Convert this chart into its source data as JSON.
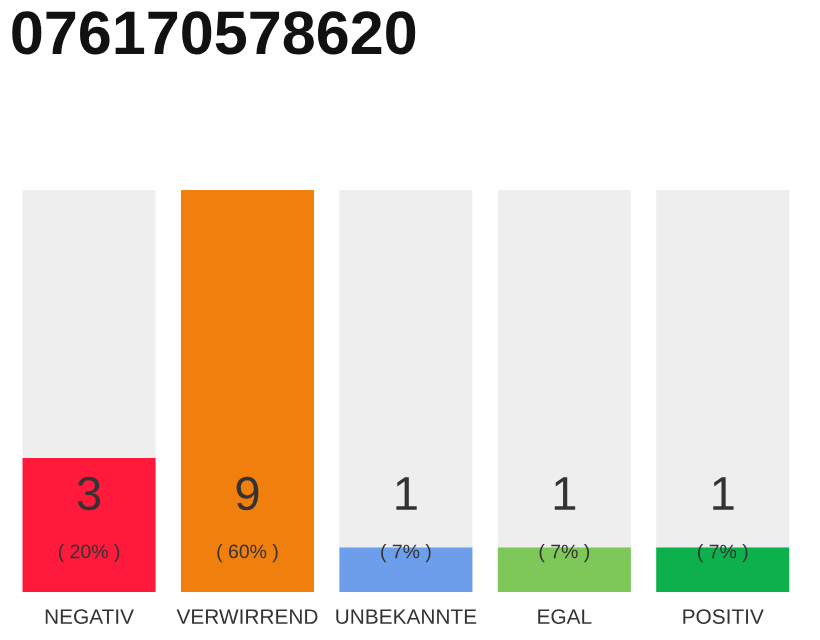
{
  "chart_data": {
    "type": "bar",
    "title": "076170578620",
    "categories": [
      "NEGATIV",
      "VERWIRREND",
      "UNBEKANNTE",
      "EGAL",
      "POSITIV"
    ],
    "stacked": true,
    "series": [
      {
        "values": [
          3,
          9,
          1,
          1,
          1
        ],
        "colors": [
          "#ff1a3c",
          "#f07f0d",
          "#6d9eeb",
          "#7ec85a",
          "#0db14b"
        ],
        "value_labels": [
          "3\n( 20% )",
          "9\n( 60% )",
          "1\n( 7% )",
          "1\n( 7% )",
          "1\n( 7% )"
        ]
      },
      {
        "values": [
          6,
          0,
          8,
          8,
          8
        ],
        "color": "#eeeeee"
      }
    ],
    "grid": false,
    "legend": false
  }
}
